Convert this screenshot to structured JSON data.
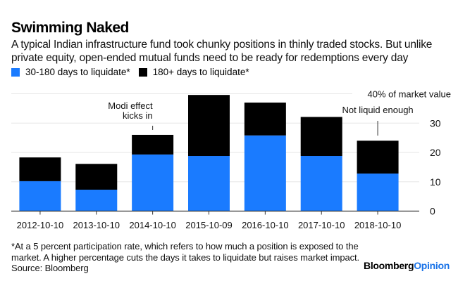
{
  "header": {
    "title": "Swimming Naked",
    "subtitle": "A typical Indian infrastructure fund took chunky positions in thinly traded stocks. But unlike private equity, open-ended mutual funds need to be ready for redemptions every day"
  },
  "legend": [
    {
      "label": "30-180 days to liquidate*",
      "color": "#1A7BFF"
    },
    {
      "label": "180+ days to liquidate*",
      "color": "#000000"
    }
  ],
  "chart_data": {
    "type": "bar",
    "stacked": true,
    "title": "Swimming Naked",
    "xlabel": "",
    "ylabel": "% of market value",
    "categories": [
      "2012-10-10",
      "2013-10-10",
      "2014-10-10",
      "2015-10-09",
      "2016-10-10",
      "2017-10-10",
      "2018-10-10"
    ],
    "series": [
      {
        "name": "30-180 days to liquidate*",
        "color": "#1A7BFF",
        "values": [
          10.2,
          7.3,
          19.3,
          18.8,
          25.8,
          18.8,
          12.8
        ]
      },
      {
        "name": "180+ days to liquidate*",
        "color": "#000000",
        "values": [
          8.1,
          8.8,
          6.7,
          20.8,
          11.2,
          13.3,
          11.2
        ]
      }
    ],
    "ylim": [
      0,
      40
    ],
    "yticks": [
      0,
      10,
      20,
      30
    ],
    "top_tick_label": "40% of market value",
    "grid": true,
    "legend_position": "top-left",
    "y_axis_side": "right",
    "annotations": [
      {
        "text_lines": [
          "Modi effect",
          "kicks in"
        ],
        "category": "2014-10-10"
      },
      {
        "text_lines": [
          "Not liquid enough"
        ],
        "category": "2018-10-10"
      }
    ]
  },
  "footer": {
    "note_line1": "*At a 5 percent participation rate, which refers to how much a position is exposed to the",
    "note_line2": "market. A higher percentage cuts the days it takes to liquidate but raises market impact.",
    "source": "Source: Bloomberg",
    "brand_main": "Bloomberg",
    "brand_accent": "Opinion"
  }
}
